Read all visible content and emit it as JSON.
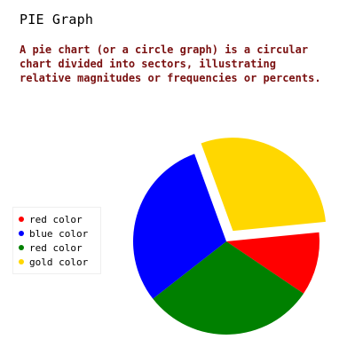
{
  "page": {
    "title": "PIE Graph",
    "description": "A pie chart (or a circle graph) is a circular chart divided into sectors, illustrating relative magnitudes or frequencies or percents."
  },
  "chart_data": {
    "type": "pie",
    "title": "PIE Graph",
    "legend_position": "left",
    "slices": [
      {
        "name": "gold color",
        "value": 29,
        "color": "#ffd700",
        "exploded": true
      },
      {
        "name": "red color",
        "value": 11,
        "color": "#ff0000",
        "exploded": false
      },
      {
        "name": "red color",
        "value": 30,
        "color": "#008000",
        "exploded": false
      },
      {
        "name": "blue color",
        "value": 30,
        "color": "#0000ff",
        "exploded": false
      }
    ],
    "legend": [
      {
        "label": "red color",
        "color": "#ff0000"
      },
      {
        "label": "blue color",
        "color": "#0000ff"
      },
      {
        "label": "red color",
        "color": "#008000"
      },
      {
        "label": "gold color",
        "color": "#ffd700"
      }
    ]
  }
}
